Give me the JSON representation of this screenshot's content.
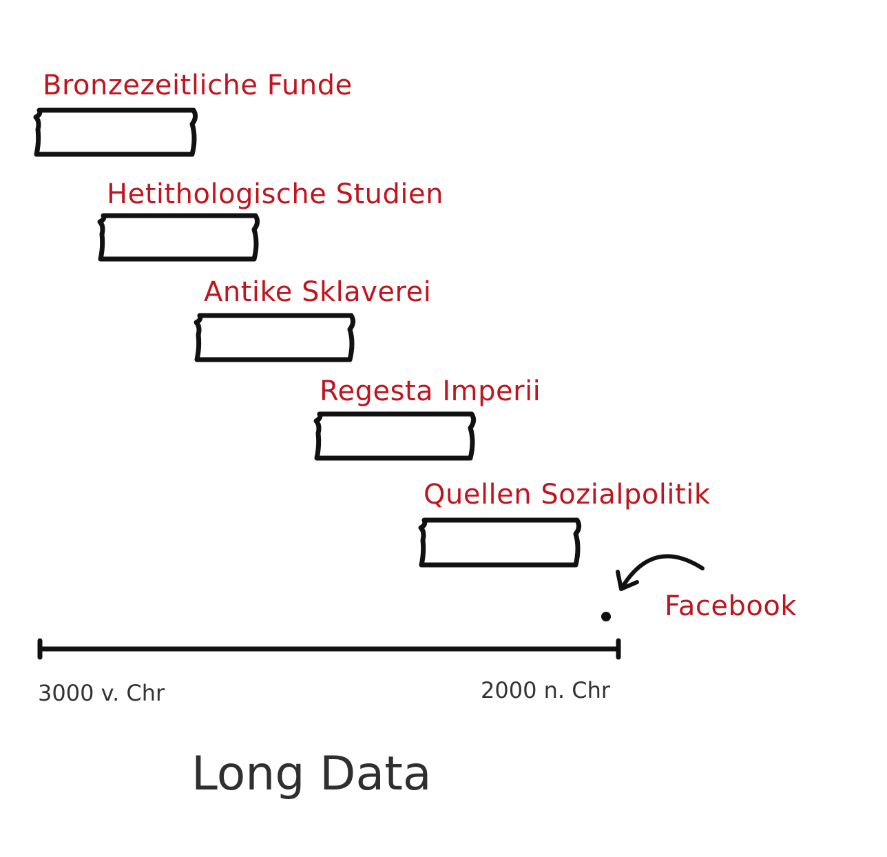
{
  "title": "Long Data",
  "timeline": {
    "start_label": "3000 v. Chr",
    "end_label": "2000 n. Chr"
  },
  "items": [
    {
      "label": "Bronzezeitliche Funde"
    },
    {
      "label": "Hetithologische Studien"
    },
    {
      "label": "Antike Sklaverei"
    },
    {
      "label": "Regesta Imperii"
    },
    {
      "label": "Quellen Sozialpolitik"
    }
  ],
  "point": {
    "label": "Facebook"
  },
  "colors": {
    "label": "#c0141e",
    "stroke": "#111111",
    "axis_text": "#333333"
  }
}
